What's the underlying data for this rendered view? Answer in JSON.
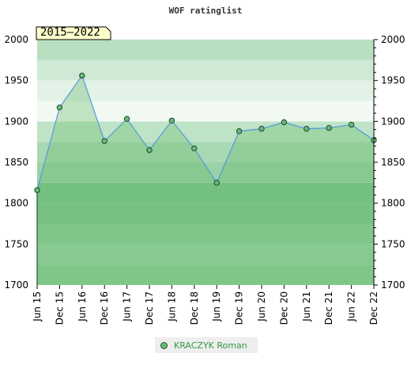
{
  "title": "WOF ratinglist",
  "badge": "2015–2022",
  "legend": {
    "label": "KRACZYK Roman"
  },
  "colors": {
    "line": "#5599dd",
    "marker": "#66bb77",
    "area": "#66bb66"
  },
  "chart_data": {
    "type": "area",
    "title": "WOF ratinglist",
    "x": [
      "Jun 15",
      "Dec 15",
      "Jun 16",
      "Dec 16",
      "Jun 17",
      "Dec 17",
      "Jun 18",
      "Dec 18",
      "Jun 19",
      "Dec 19",
      "Jun 20",
      "Dec 20",
      "Jun 21",
      "Dec 21",
      "Jun 22",
      "Dec 22"
    ],
    "series": [
      {
        "name": "KRACZYK Roman",
        "values": [
          1816,
          1917,
          1956,
          1876,
          1903,
          1865,
          1901,
          1867,
          1825,
          1888,
          1891,
          1899,
          1891,
          1892,
          1896,
          1877
        ]
      }
    ],
    "ylim": [
      1700,
      2000
    ],
    "yticks": [
      1700,
      1750,
      1800,
      1850,
      1900,
      1950,
      2000
    ],
    "grid": true,
    "legend_position": "bottom-center"
  }
}
